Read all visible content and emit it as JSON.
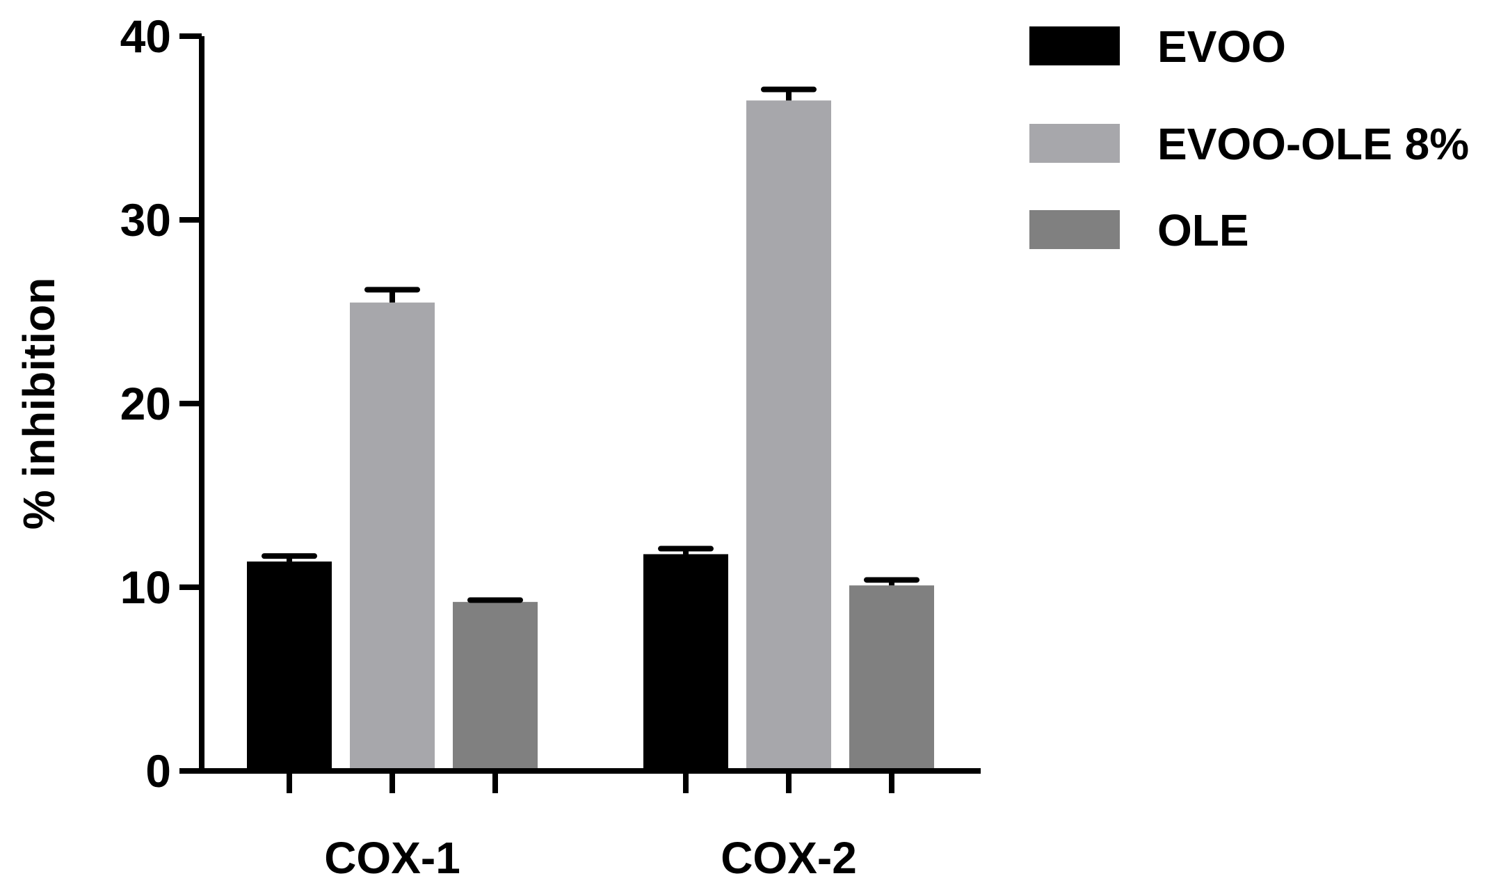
{
  "chart_data": {
    "type": "bar",
    "title": "",
    "xlabel": "",
    "ylabel": "% inhibition",
    "ylim": [
      0,
      40
    ],
    "yticks": [
      "0",
      "10",
      "20",
      "30",
      "40"
    ],
    "categories": [
      "COX-1",
      "COX-2"
    ],
    "series": [
      {
        "name": "EVOO",
        "color": "#000000",
        "values": [
          11.4,
          11.8
        ],
        "errors": [
          0.3,
          0.3
        ]
      },
      {
        "name": "EVOO-OLE 8%",
        "color": "#a7a7ab",
        "values": [
          25.5,
          36.5
        ],
        "errors": [
          0.7,
          0.6
        ]
      },
      {
        "name": "OLE",
        "color": "#808080",
        "values": [
          9.2,
          10.1
        ],
        "errors": [
          0.1,
          0.3
        ]
      }
    ],
    "legend": "right",
    "grid": false
  }
}
